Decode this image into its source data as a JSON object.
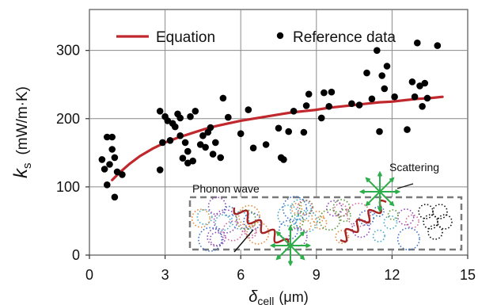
{
  "chart_data": {
    "type": "scatter",
    "xlabel_main": "δ",
    "xlabel_sub": "cell",
    "xlabel_unit": "(μm)",
    "ylabel_main": "k",
    "ylabel_sub": "s",
    "ylabel_unit": "(mW/m·K)",
    "xlim": [
      0,
      15
    ],
    "ylim": [
      0,
      360
    ],
    "xticks": [
      0,
      3,
      6,
      9,
      12,
      15
    ],
    "yticks": [
      0,
      100,
      200,
      300
    ],
    "grid": true,
    "legend_position": "top",
    "series": [
      {
        "name": "Equation",
        "kind": "line",
        "color": "#c0282d",
        "x": [
          0.9,
          1.2,
          1.6,
          2.0,
          2.5,
          3.0,
          3.5,
          4.0,
          4.5,
          5.0,
          5.5,
          6.0,
          6.5,
          7.0,
          7.5,
          8.0,
          8.5,
          9.0,
          9.5,
          10.0,
          10.5,
          11.0,
          11.5,
          12.0,
          12.5,
          13.0,
          13.5,
          14.0
        ],
        "y": [
          110,
          121,
          134,
          145,
          156,
          165,
          172,
          178,
          184,
          189,
          193,
          197,
          200,
          203,
          206,
          209,
          211,
          213,
          216,
          218,
          220,
          222,
          224,
          225,
          227,
          229,
          230,
          232
        ]
      },
      {
        "name": "Reference data",
        "kind": "scatter",
        "color": "#000000",
        "points": [
          [
            0.5,
            140
          ],
          [
            0.6,
            126
          ],
          [
            0.7,
            103
          ],
          [
            0.7,
            173
          ],
          [
            0.8,
            133
          ],
          [
            0.9,
            155
          ],
          [
            0.9,
            173
          ],
          [
            1.0,
            143
          ],
          [
            1.0,
            85
          ],
          [
            1.1,
            122
          ],
          [
            1.3,
            118
          ],
          [
            2.8,
            125
          ],
          [
            2.8,
            211
          ],
          [
            2.9,
            165
          ],
          [
            3.0,
            203
          ],
          [
            3.1,
            197
          ],
          [
            3.2,
            168
          ],
          [
            3.3,
            193
          ],
          [
            3.4,
            188
          ],
          [
            3.5,
            207
          ],
          [
            3.6,
            201
          ],
          [
            3.6,
            175
          ],
          [
            3.7,
            142
          ],
          [
            3.8,
            165
          ],
          [
            3.9,
            152
          ],
          [
            3.9,
            135
          ],
          [
            4.0,
            203
          ],
          [
            4.1,
            138
          ],
          [
            4.2,
            211
          ],
          [
            4.4,
            162
          ],
          [
            4.5,
            175
          ],
          [
            4.6,
            158
          ],
          [
            4.7,
            180
          ],
          [
            4.8,
            187
          ],
          [
            4.9,
            148
          ],
          [
            5.0,
            165
          ],
          [
            5.2,
            143
          ],
          [
            5.3,
            230
          ],
          [
            5.5,
            202
          ],
          [
            6.0,
            178
          ],
          [
            6.3,
            213
          ],
          [
            6.5,
            157
          ],
          [
            7.0,
            162
          ],
          [
            7.5,
            186
          ],
          [
            7.6,
            143
          ],
          [
            7.7,
            140
          ],
          [
            7.9,
            181
          ],
          [
            8.1,
            211
          ],
          [
            8.5,
            180
          ],
          [
            8.6,
            219
          ],
          [
            8.7,
            236
          ],
          [
            9.2,
            201
          ],
          [
            9.3,
            238
          ],
          [
            9.5,
            218
          ],
          [
            9.6,
            239
          ],
          [
            10.4,
            222
          ],
          [
            10.7,
            220
          ],
          [
            11.0,
            267
          ],
          [
            11.2,
            229
          ],
          [
            11.4,
            300
          ],
          [
            11.5,
            181
          ],
          [
            11.6,
            263
          ],
          [
            11.7,
            244
          ],
          [
            11.8,
            277
          ],
          [
            12.1,
            232
          ],
          [
            12.6,
            184
          ],
          [
            12.8,
            254
          ],
          [
            12.9,
            232
          ],
          [
            13.0,
            311
          ],
          [
            13.1,
            248
          ],
          [
            13.2,
            218
          ],
          [
            13.3,
            252
          ],
          [
            13.4,
            230
          ],
          [
            13.8,
            307
          ]
        ]
      }
    ],
    "inset": {
      "phonon_label": "Phonon wave",
      "scattering_label": "Scattering"
    }
  }
}
